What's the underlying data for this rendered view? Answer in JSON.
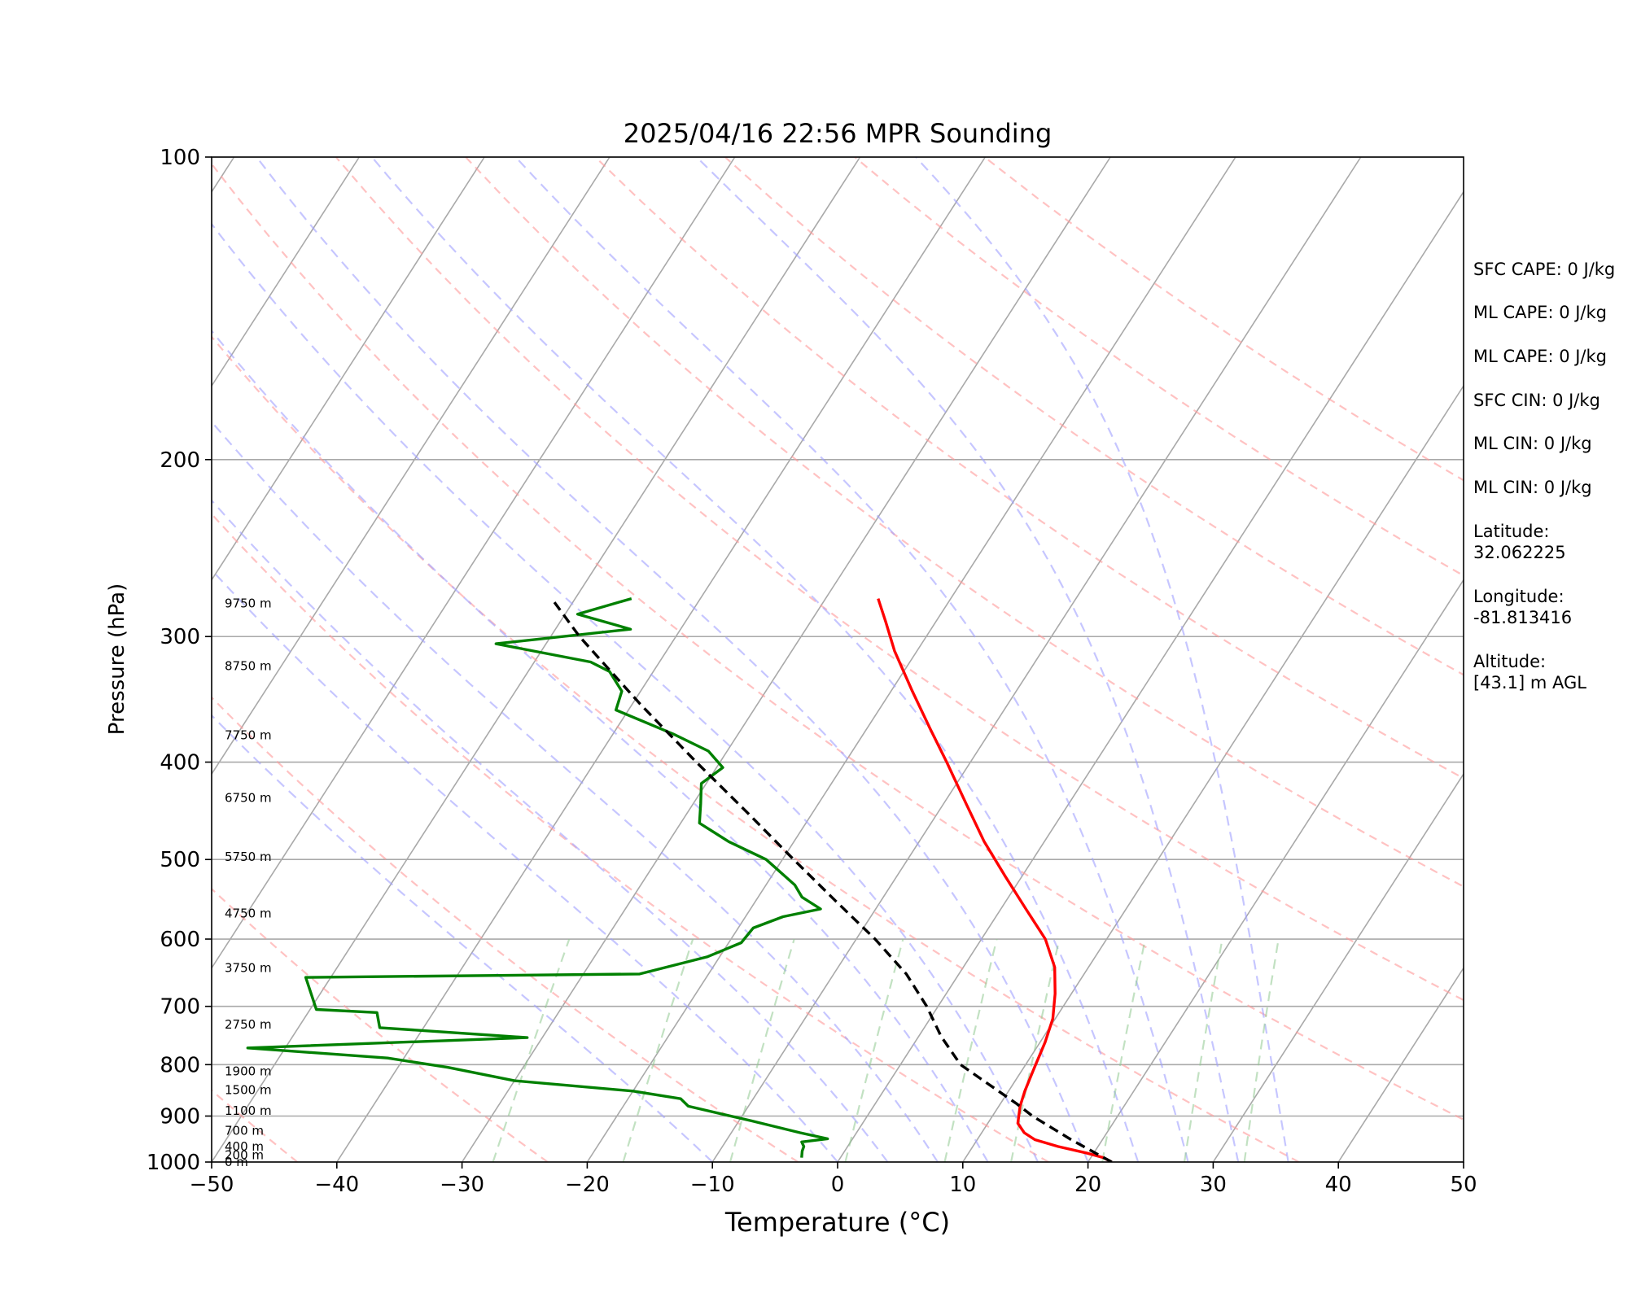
{
  "chart_data": {
    "type": "line",
    "subtype": "skew-t log-p sounding",
    "title": "2025/04/16 22:56 MPR Sounding",
    "xlabel": "Temperature (°C)",
    "ylabel": "Pressure (hPa)",
    "xlim": [
      -50,
      50
    ],
    "ylim": [
      1000,
      100
    ],
    "y_scale": "log",
    "x_ticks": [
      -50,
      -40,
      -30,
      -20,
      -10,
      0,
      10,
      20,
      30,
      40,
      50
    ],
    "x_tick_labels": [
      "−50",
      "−40",
      "−30",
      "−20",
      "−10",
      "0",
      "10",
      "20",
      "30",
      "40",
      "50"
    ],
    "y_ticks": [
      100,
      200,
      300,
      400,
      500,
      600,
      700,
      800,
      900,
      1000
    ],
    "y_tick_labels": [
      "100",
      "200",
      "300",
      "400",
      "500",
      "600",
      "700",
      "800",
      "900",
      "1000"
    ],
    "grid": true,
    "series": [
      {
        "color": "#ff0000",
        "points": [
          [
            1000,
            21.9
          ],
          [
            990,
            21.0
          ],
          [
            980,
            19.5
          ],
          [
            965,
            16.8
          ],
          [
            950,
            14.6
          ],
          [
            935,
            13.4
          ],
          [
            915,
            12.4
          ],
          [
            880,
            11.7
          ],
          [
            850,
            11.3
          ],
          [
            820,
            11.0
          ],
          [
            800,
            10.8
          ],
          [
            760,
            10.4
          ],
          [
            720,
            9.8
          ],
          [
            680,
            8.7
          ],
          [
            640,
            7.3
          ],
          [
            600,
            5.1
          ],
          [
            560,
            2.0
          ],
          [
            520,
            -1.3
          ],
          [
            480,
            -4.8
          ],
          [
            440,
            -8.2
          ],
          [
            400,
            -11.9
          ],
          [
            370,
            -15.0
          ],
          [
            340,
            -18.3
          ],
          [
            310,
            -21.8
          ],
          [
            290,
            -24.0
          ],
          [
            275,
            -25.8
          ]
        ]
      },
      {
        "color": "#008000",
        "points": [
          [
            990,
            -3.1
          ],
          [
            975,
            -3.4
          ],
          [
            965,
            -3.5
          ],
          [
            955,
            -3.9
          ],
          [
            948,
            -2.0
          ],
          [
            935,
            -4.5
          ],
          [
            910,
            -9.0
          ],
          [
            880,
            -14.8
          ],
          [
            865,
            -15.8
          ],
          [
            850,
            -20.0
          ],
          [
            830,
            -30.0
          ],
          [
            805,
            -36.0
          ],
          [
            788,
            -41.3
          ],
          [
            770,
            -53.0
          ],
          [
            752,
            -31.2
          ],
          [
            735,
            -43.5
          ],
          [
            710,
            -44.5
          ],
          [
            705,
            -49.5
          ],
          [
            655,
            -52.0
          ],
          [
            650,
            -25.5
          ],
          [
            625,
            -21.0
          ],
          [
            605,
            -19.0
          ],
          [
            585,
            -18.8
          ],
          [
            570,
            -17.0
          ],
          [
            560,
            -14.4
          ],
          [
            545,
            -16.5
          ],
          [
            530,
            -17.7
          ],
          [
            500,
            -21.3
          ],
          [
            480,
            -25.2
          ],
          [
            460,
            -28.5
          ],
          [
            440,
            -29.4
          ],
          [
            420,
            -30.4
          ],
          [
            405,
            -29.5
          ],
          [
            390,
            -31.5
          ],
          [
            375,
            -35.2
          ],
          [
            355,
            -41.0
          ],
          [
            340,
            -41.5
          ],
          [
            325,
            -43.5
          ],
          [
            318,
            -45.5
          ],
          [
            305,
            -54.0
          ],
          [
            295,
            -44.0
          ],
          [
            285,
            -49.0
          ],
          [
            275,
            -45.5
          ]
        ]
      },
      {
        "color": "#000000",
        "dashed": true,
        "points": [
          [
            1000,
            21.9
          ],
          [
            950,
            17.5
          ],
          [
            900,
            13.2
          ],
          [
            875,
            11.3
          ],
          [
            800,
            4.8
          ],
          [
            750,
            1.8
          ],
          [
            700,
            -0.9
          ],
          [
            650,
            -4.2
          ],
          [
            600,
            -8.5
          ],
          [
            550,
            -13.6
          ],
          [
            500,
            -19.1
          ],
          [
            450,
            -25.1
          ],
          [
            400,
            -31.9
          ],
          [
            350,
            -39.4
          ],
          [
            300,
            -47.7
          ],
          [
            276,
            -51.7
          ]
        ]
      }
    ],
    "background_lines": {
      "isotherms_every": 10,
      "dry_adiabats_theta_K": [
        210,
        230,
        250,
        270,
        290,
        310,
        330,
        350,
        370,
        390,
        410,
        430,
        450
      ],
      "moist_adiabats_start_C": [
        -10,
        0,
        4,
        8,
        12,
        16,
        20,
        24,
        28,
        32,
        36
      ],
      "mixing_ratio_lines_gkg": [
        0.4,
        1,
        2,
        4,
        7,
        10,
        16,
        24,
        32
      ]
    },
    "height_labels": [
      "0 m",
      "200 m",
      "400 m",
      "700 m",
      "1100 m",
      "1500 m",
      "1900 m",
      "2750 m",
      "3750 m",
      "4750 m",
      "5750 m",
      "6750 m",
      "7750 m",
      "8750 m",
      "9750 m"
    ],
    "height_label_pressures": [
      1000,
      984,
      965,
      931,
      889,
      848,
      812,
      730,
      641,
      566,
      497,
      434,
      376,
      321,
      278
    ]
  },
  "side_panel": [
    "SFC CAPE: 0 J/kg",
    "ML CAPE: 0 J/kg",
    "ML CAPE: 0 J/kg",
    "SFC CIN: 0 J/kg",
    "ML CIN: 0 J/kg",
    "ML CIN: 0 J/kg",
    "Latitude:\n32.062225",
    "Longitude:\n-81.813416",
    "Altitude:\n[43.1] m AGL"
  ]
}
